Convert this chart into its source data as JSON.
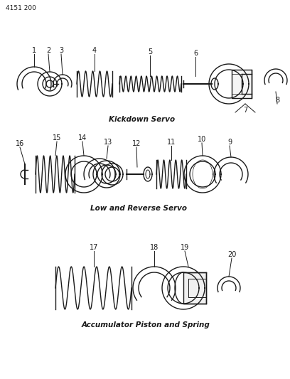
{
  "title": "4151 200",
  "section1_label": "Kickdown Servo",
  "section2_label": "Low and Reverse Servo",
  "section3_label": "Accumulator Piston and Spring",
  "bg_color": "#ffffff",
  "line_color": "#1a1a1a",
  "fig_width": 4.08,
  "fig_height": 5.33,
  "dpi": 100
}
